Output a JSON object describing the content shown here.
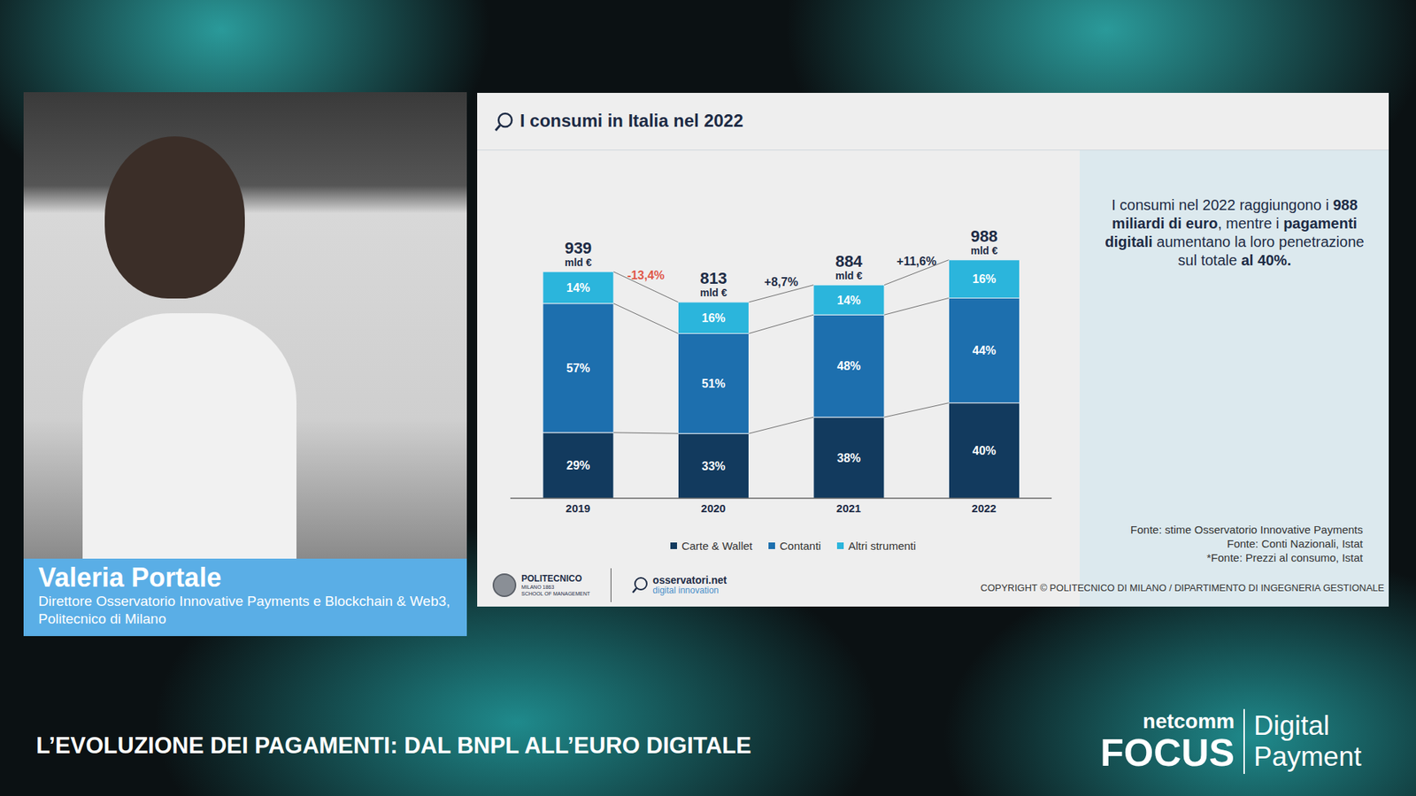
{
  "chart_data": {
    "type": "bar",
    "stacked": true,
    "title": "I consumi in Italia nel 2022",
    "categories": [
      "2019",
      "2020",
      "2021",
      "2022"
    ],
    "totals": [
      939,
      813,
      884,
      988
    ],
    "total_unit": "mld €",
    "growth": [
      null,
      -13.4,
      8.7,
      11.6
    ],
    "growth_labels": [
      null,
      "-13,4%",
      "+8,7%",
      "+11,6%"
    ],
    "series": [
      {
        "name": "Carte & Wallet",
        "color": "#123a5e",
        "values": [
          29,
          33,
          38,
          40
        ],
        "value_labels": [
          "29%",
          "33%",
          "38%",
          "40%"
        ]
      },
      {
        "name": "Contanti",
        "color": "#1d6fae",
        "values": [
          57,
          51,
          48,
          44
        ],
        "value_labels": [
          "57%",
          "51%",
          "48%",
          "44%"
        ]
      },
      {
        "name": "Altri strumenti",
        "color": "#2bb5dc",
        "values": [
          14,
          16,
          14,
          16
        ],
        "value_labels": [
          "14%",
          "16%",
          "14%",
          "16%"
        ]
      }
    ],
    "ylim": [
      0,
      1100
    ],
    "tick_labels": "x",
    "data_labels": true,
    "legend": "bottom",
    "grid": false
  },
  "slide": {
    "summary": [
      {
        "text": "I consumi nel 2022 raggiungono i ",
        "bold": false
      },
      {
        "text": "988 miliardi di euro",
        "bold": true
      },
      {
        "text": ", mentre i ",
        "bold": false
      },
      {
        "text": "pagamenti digitali",
        "bold": true
      },
      {
        "text": " aumentano la loro penetrazione sul totale ",
        "bold": false
      },
      {
        "text": "al 40%.",
        "bold": true
      }
    ],
    "sources": [
      "Fonte: stime Osservatorio Innovative Payments",
      "Fonte: Conti Nazionali, Istat",
      "*Fonte: Prezzi al consumo, Istat"
    ],
    "copyright": "COPYRIGHT © POLITECNICO DI MILANO / DIPARTIMENTO DI INGEGNERIA GESTIONALE",
    "logo_left": [
      "POLITECNICO",
      "MILANO 1863",
      "SCHOOL OF MANAGEMENT"
    ],
    "logo_right": [
      "osservatori.net",
      "digital innovation"
    ]
  },
  "speaker": {
    "name": "Valeria Portale",
    "role": "Direttore Osservatorio Innovative Payments e Blockchain & Web3, Politecnico di Milano"
  },
  "banner": "L’EVOLUZIONE DEI PAGAMENTI: DAL BNPL ALL’EURO DIGITALE",
  "event_logo": {
    "top": "netcomm",
    "main": "FOCUS",
    "right": [
      "Digital",
      "Payment"
    ]
  }
}
